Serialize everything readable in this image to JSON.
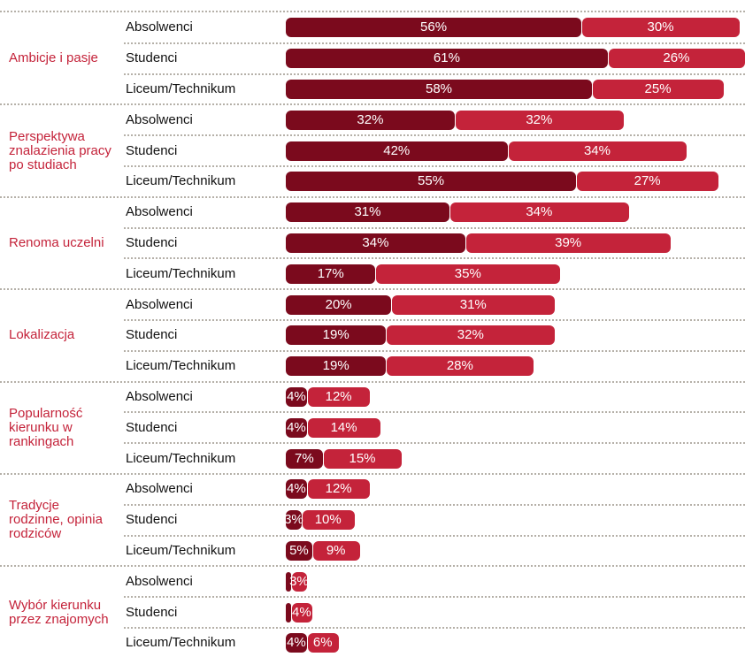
{
  "chart_data": {
    "type": "bar",
    "groups": [
      {
        "label": "Ambicje i pasje",
        "categories": [
          "Absolwenci",
          "Studenci",
          "Liceum/Technikum"
        ]
      },
      {
        "label": "Perspektywa znalazienia pracy po studiach",
        "categories": [
          "Absolwenci",
          "Studenci",
          "Liceum/Technikum"
        ]
      },
      {
        "label": "Renoma uczelni",
        "categories": [
          "Absolwenci",
          "Studenci",
          "Liceum/Technikum"
        ]
      },
      {
        "label": "Lokalizacja",
        "categories": [
          "Absolwenci",
          "Studenci",
          "Liceum/Technikum"
        ]
      },
      {
        "label": "Popularność kierunku w rankingach",
        "categories": [
          "Absolwenci",
          "Studenci",
          "Liceum/Technikum"
        ]
      },
      {
        "label": "Tradycje rodzinne, opinia rodziców",
        "categories": [
          "Absolwenci",
          "Studenci",
          "Liceum/Technikum"
        ]
      },
      {
        "label": "Wybór kierunku przez znajomych",
        "categories": [
          "Absolwenci",
          "Studenci",
          "Liceum/Technikum"
        ]
      }
    ],
    "series": [
      {
        "color": "#7b0a1d",
        "values": [
          56,
          61,
          58,
          32,
          42,
          55,
          31,
          34,
          17,
          20,
          19,
          19,
          4,
          4,
          7,
          4,
          3,
          5,
          1,
          1,
          4
        ],
        "value_labels": [
          "56%",
          "61%",
          "58%",
          "32%",
          "42%",
          "55%",
          "31%",
          "34%",
          "17%",
          "20%",
          "19%",
          "19%",
          "4%",
          "4%",
          "7%",
          "4%",
          "3%",
          "5%",
          null,
          null,
          "4%"
        ]
      },
      {
        "color": "#c4233a",
        "values": [
          30,
          26,
          25,
          32,
          34,
          27,
          34,
          39,
          35,
          31,
          32,
          28,
          12,
          14,
          15,
          12,
          10,
          9,
          3,
          4,
          6
        ],
        "value_labels": [
          "30%",
          "26%",
          "25%",
          "32%",
          "34%",
          "27%",
          "34%",
          "39%",
          "35%",
          "31%",
          "32%",
          "28%",
          "12%",
          "14%",
          "15%",
          "12%",
          "10%",
          "9%",
          "3%",
          "4%",
          "6%"
        ]
      }
    ]
  }
}
